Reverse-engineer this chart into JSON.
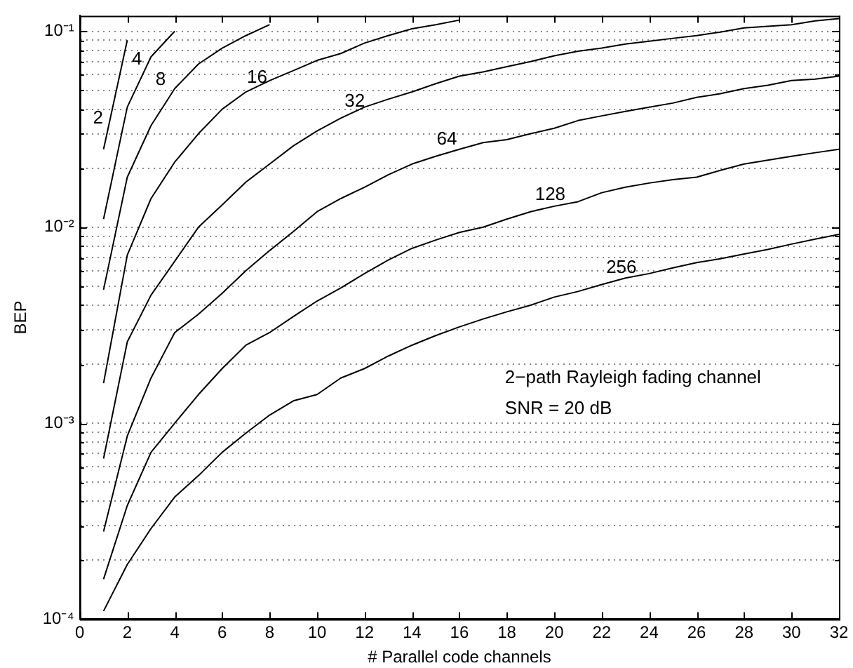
{
  "chart_data": {
    "type": "line",
    "xlabel": "# Parallel code channels",
    "ylabel": "BEP",
    "log": "y",
    "grid": "y",
    "legend": false,
    "marker": "none",
    "line_style": "solid",
    "annotations": [
      "2−path Rayleigh fading channel",
      "SNR = 20 dB"
    ],
    "xlim": [
      0,
      32
    ],
    "xticks": [
      0,
      2,
      4,
      6,
      8,
      10,
      12,
      14,
      16,
      18,
      20,
      22,
      24,
      26,
      28,
      30,
      32
    ],
    "ylim": [
      0.0001,
      0.12
    ],
    "yticks": [
      {
        "value": 0.0001,
        "label": "10⁻⁴"
      },
      {
        "value": 0.0002,
        "label": null
      },
      {
        "value": 0.0003,
        "label": null
      },
      {
        "value": 0.0004,
        "label": null
      },
      {
        "value": 0.0005,
        "label": null
      },
      {
        "value": 0.0006,
        "label": null
      },
      {
        "value": 0.0007,
        "label": null
      },
      {
        "value": 0.0008,
        "label": null
      },
      {
        "value": 0.0009,
        "label": null
      },
      {
        "value": 0.001,
        "label": "10⁻³"
      },
      {
        "value": 0.002,
        "label": null
      },
      {
        "value": 0.003,
        "label": null
      },
      {
        "value": 0.004,
        "label": null
      },
      {
        "value": 0.005,
        "label": null
      },
      {
        "value": 0.006,
        "label": null
      },
      {
        "value": 0.007,
        "label": null
      },
      {
        "value": 0.008,
        "label": null
      },
      {
        "value": 0.009,
        "label": null
      },
      {
        "value": 0.01,
        "label": "10⁻²"
      },
      {
        "value": 0.02,
        "label": null
      },
      {
        "value": 0.03,
        "label": null
      },
      {
        "value": 0.04,
        "label": null
      },
      {
        "value": 0.05,
        "label": null
      },
      {
        "value": 0.06,
        "label": null
      },
      {
        "value": 0.07,
        "label": null
      },
      {
        "value": 0.08,
        "label": null
      },
      {
        "value": 0.09,
        "label": null
      },
      {
        "value": 0.1,
        "label": "10⁻¹"
      }
    ],
    "x": [
      1,
      2,
      3,
      4,
      5,
      6,
      7,
      8,
      9,
      10,
      11,
      12,
      13,
      14,
      15,
      16,
      17,
      18,
      19,
      20,
      21,
      22,
      23,
      24,
      25,
      26,
      27,
      28,
      29,
      30,
      31,
      32
    ],
    "series": [
      {
        "name": "2",
        "color": "#000000",
        "x": [
          1,
          2
        ],
        "values": [
          0.025,
          0.09
        ]
      },
      {
        "name": "4",
        "color": "#000000",
        "x": [
          1,
          2,
          3,
          4
        ],
        "values": [
          0.011,
          0.041,
          0.074,
          0.1
        ]
      },
      {
        "name": "8",
        "color": "#000000",
        "x": [
          1,
          2,
          3,
          4,
          5,
          6,
          7,
          8
        ],
        "values": [
          0.0048,
          0.018,
          0.033,
          0.051,
          0.068,
          0.082,
          0.095,
          0.108
        ]
      },
      {
        "name": "16",
        "color": "#000000",
        "x": [
          1,
          2,
          3,
          4,
          5,
          6,
          7,
          8,
          9,
          10,
          11,
          12,
          13,
          14,
          15,
          16
        ],
        "values": [
          0.0016,
          0.0072,
          0.014,
          0.0215,
          0.03,
          0.04,
          0.049,
          0.056,
          0.063,
          0.071,
          0.077,
          0.087,
          0.095,
          0.103,
          0.108,
          0.114
        ]
      },
      {
        "name": "32",
        "color": "#000000",
        "values": [
          0.00066,
          0.0026,
          0.0045,
          0.0067,
          0.01,
          0.013,
          0.017,
          0.021,
          0.026,
          0.031,
          0.036,
          0.041,
          0.045,
          0.049,
          0.054,
          0.059,
          0.062,
          0.066,
          0.07,
          0.075,
          0.079,
          0.082,
          0.086,
          0.089,
          0.092,
          0.095,
          0.099,
          0.104,
          0.106,
          0.108,
          0.113,
          0.116
        ]
      },
      {
        "name": "64",
        "color": "#000000",
        "values": [
          0.00028,
          0.00086,
          0.0017,
          0.0029,
          0.0036,
          0.0046,
          0.006,
          0.0076,
          0.0095,
          0.012,
          0.014,
          0.016,
          0.0185,
          0.021,
          0.023,
          0.025,
          0.027,
          0.028,
          0.03,
          0.032,
          0.035,
          0.037,
          0.039,
          0.041,
          0.043,
          0.046,
          0.048,
          0.051,
          0.053,
          0.056,
          0.057,
          0.059
        ]
      },
      {
        "name": "128",
        "color": "#000000",
        "values": [
          0.00016,
          0.00038,
          0.00071,
          0.001,
          0.0014,
          0.0019,
          0.0025,
          0.0029,
          0.0035,
          0.0042,
          0.0049,
          0.0058,
          0.0068,
          0.0078,
          0.0086,
          0.0094,
          0.01,
          0.011,
          0.012,
          0.0128,
          0.0135,
          0.015,
          0.016,
          0.0168,
          0.0175,
          0.018,
          0.0195,
          0.021,
          0.022,
          0.023,
          0.024,
          0.025
        ]
      },
      {
        "name": "256",
        "color": "#000000",
        "values": [
          0.00011,
          0.00019,
          0.00029,
          0.00042,
          0.00054,
          0.00071,
          0.00089,
          0.0011,
          0.0013,
          0.0014,
          0.0017,
          0.0019,
          0.0022,
          0.0025,
          0.0028,
          0.0031,
          0.0034,
          0.0037,
          0.004,
          0.0044,
          0.0047,
          0.0051,
          0.0055,
          0.0058,
          0.0062,
          0.0066,
          0.0069,
          0.0073,
          0.0077,
          0.0082,
          0.0087,
          0.0092
        ]
      }
    ]
  }
}
